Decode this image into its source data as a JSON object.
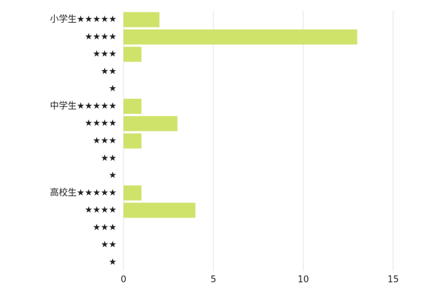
{
  "chart_data": {
    "type": "bar",
    "orientation": "horizontal",
    "categories": [
      "小学生★★★★★",
      "★★★★",
      "★★★",
      "★★",
      "★",
      "中学生★★★★★",
      "★★★★",
      "★★★",
      "★★",
      "★",
      "高校生★★★★★",
      "★★★★",
      "★★★",
      "★★",
      "★"
    ],
    "values": [
      2,
      13,
      1,
      0,
      0,
      1,
      3,
      1,
      0,
      0,
      1,
      4,
      0,
      0,
      0
    ],
    "color": "#cfe36b",
    "xlim": [
      0,
      15
    ],
    "xticks": [
      0,
      5,
      10,
      15
    ],
    "grid": true
  }
}
